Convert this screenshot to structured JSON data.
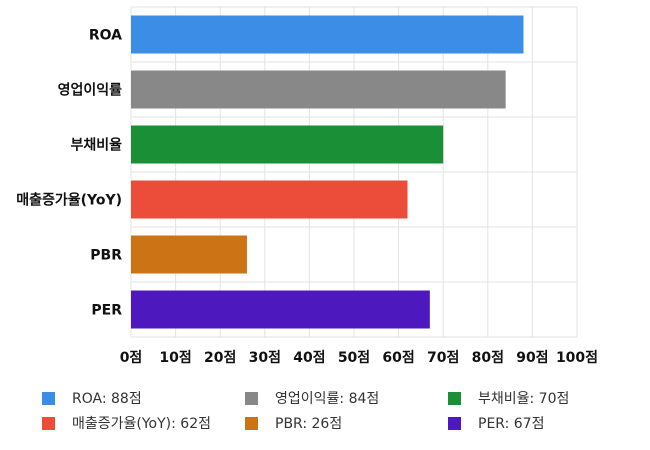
{
  "chart_data": {
    "type": "bar",
    "orientation": "horizontal",
    "categories": [
      "ROA",
      "영업이익률",
      "부채비율",
      "매출증가율(YoY)",
      "PBR",
      "PER"
    ],
    "values": [
      88,
      84,
      70,
      62,
      26,
      67
    ],
    "colors": [
      "#3b8de6",
      "#888888",
      "#1a8f36",
      "#eb4d3a",
      "#cc7415",
      "#4e18bf"
    ],
    "xlim": [
      0,
      100
    ],
    "xticks": [
      "0점",
      "10점",
      "20점",
      "30점",
      "40점",
      "50점",
      "60점",
      "70점",
      "80점",
      "90점",
      "100점"
    ],
    "grid": true,
    "legend_position": "bottom",
    "legend": [
      "ROA: 88점",
      "영업이익률: 84점",
      "부채비율: 70점",
      "매출증가율(YoY): 62점",
      "PBR: 26점",
      "PER: 67점"
    ]
  }
}
